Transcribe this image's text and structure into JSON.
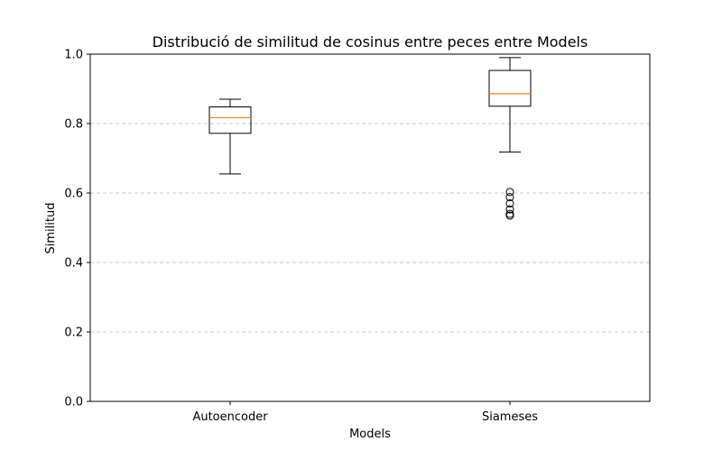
{
  "chart_data": {
    "type": "box",
    "title": "Distribució de similitud de cosinus entre peces entre Models",
    "xlabel": "Models",
    "ylabel": "Similitud",
    "ylim": [
      0.0,
      1.0
    ],
    "yticks": [
      "0.0",
      "0.2",
      "0.4",
      "0.6",
      "0.8",
      "1.0"
    ],
    "grid": "horizontal dashed",
    "categories": [
      "Autoencoder",
      "Siameses"
    ],
    "series": [
      {
        "whisker_low": 0.655,
        "q1": 0.772,
        "median": 0.817,
        "q3": 0.848,
        "whisker_high": 0.87,
        "outliers": []
      },
      {
        "whisker_low": 0.718,
        "q1": 0.85,
        "median": 0.886,
        "q3": 0.953,
        "whisker_high": 0.99,
        "outliers": [
          0.603,
          0.588,
          0.57,
          0.553,
          0.54,
          0.535
        ]
      }
    ],
    "colors": {
      "box": "#000000",
      "median": "#ff7f0e",
      "grid": "#c8c8c8"
    }
  }
}
